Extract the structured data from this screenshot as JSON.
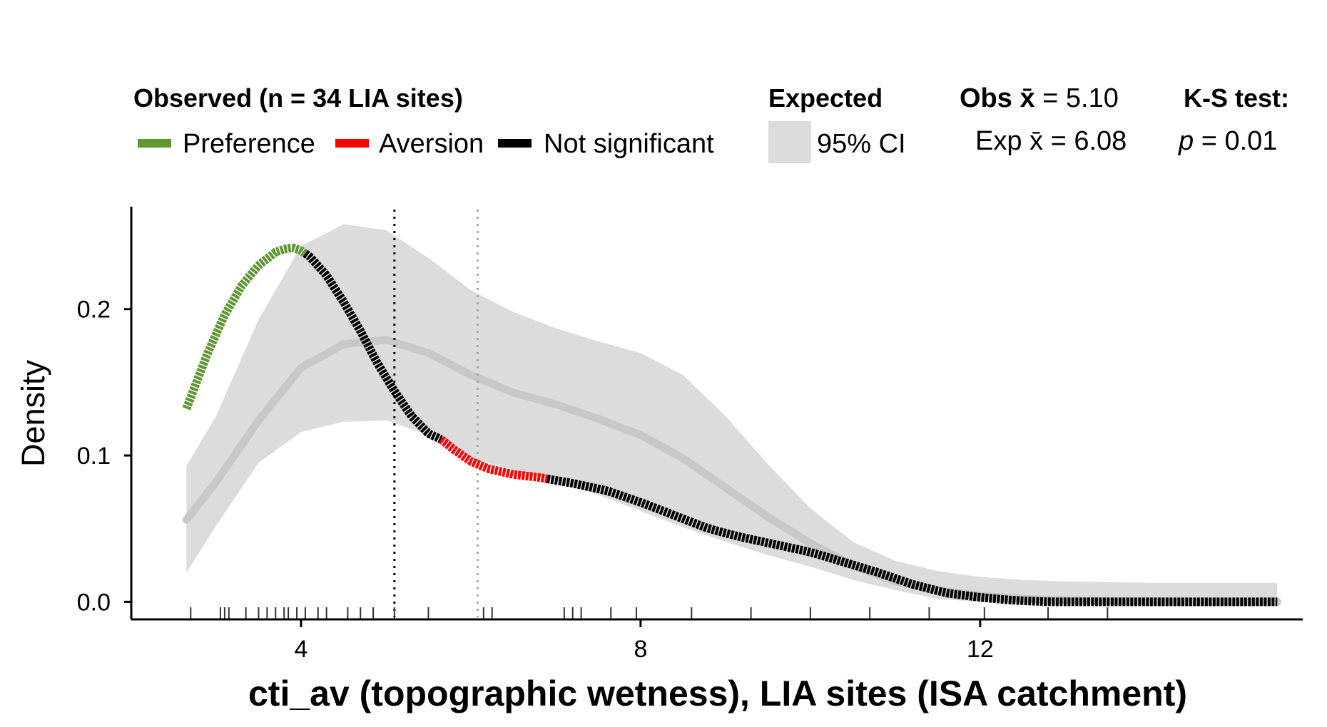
{
  "legend": {
    "observed_title": "Observed (n = 34 LIA sites)",
    "items": [
      {
        "label": "Preference",
        "color": "#5e9732"
      },
      {
        "label": "Aversion",
        "color": "#ff0000"
      },
      {
        "label": "Not significant",
        "color": "#000000"
      }
    ],
    "expected_title": "Expected",
    "ci_label": "95% CI",
    "ci_color": "#dcdcdc",
    "obs_mean_bold": "Obs x̄",
    "obs_mean_value": " = 5.10",
    "exp_mean": "Exp x̄ = 6.08",
    "ks_title": "K-S test:",
    "ks_p_symbol": "p",
    "ks_p_value": " = 0.01"
  },
  "chart_data": {
    "type": "line",
    "xlabel": "cti_av (topographic wetness), LIA sites (ISA catchment)",
    "ylabel": "Density",
    "xlim": [
      2.0,
      15.8
    ],
    "ylim": [
      -0.012,
      0.27
    ],
    "x_ticks": [
      4,
      8,
      12
    ],
    "x_tick_labels": [
      "4",
      "8",
      "12"
    ],
    "y_ticks": [
      0.0,
      0.1,
      0.2
    ],
    "y_tick_labels": [
      "0.0",
      "0.1",
      "0.2"
    ],
    "obs_mean": 5.1,
    "exp_mean": 6.08,
    "observed": {
      "name": "Observed",
      "x": [
        2.65,
        2.9,
        3.1,
        3.3,
        3.5,
        3.7,
        3.8,
        3.9,
        4.0,
        4.1,
        4.3,
        4.5,
        4.7,
        4.9,
        5.1,
        5.3,
        5.5,
        5.65,
        5.8,
        6.0,
        6.2,
        6.5,
        6.8,
        6.9,
        7.2,
        7.6,
        8.0,
        8.4,
        8.8,
        9.2,
        9.6,
        10.0,
        10.4,
        10.8,
        11.2,
        11.6,
        12.0,
        12.4,
        12.8,
        13.3,
        14.0,
        14.8,
        15.5
      ],
      "y": [
        0.132,
        0.17,
        0.196,
        0.216,
        0.23,
        0.239,
        0.241,
        0.242,
        0.24,
        0.236,
        0.223,
        0.205,
        0.185,
        0.163,
        0.144,
        0.127,
        0.115,
        0.111,
        0.104,
        0.096,
        0.091,
        0.087,
        0.085,
        0.084,
        0.081,
        0.076,
        0.068,
        0.059,
        0.05,
        0.044,
        0.039,
        0.034,
        0.027,
        0.02,
        0.012,
        0.006,
        0.003,
        0.001,
        0.0,
        0.0,
        0.0,
        0.0,
        0.0
      ],
      "segments": [
        {
          "status": "Preference",
          "x_range": [
            2.65,
            4.05
          ]
        },
        {
          "status": "Not significant",
          "x_range": [
            4.05,
            5.65
          ]
        },
        {
          "status": "Aversion",
          "x_range": [
            5.65,
            6.9
          ]
        },
        {
          "status": "Not significant",
          "x_range": [
            6.9,
            15.5
          ]
        }
      ]
    },
    "expected": {
      "name": "Expected",
      "x": [
        2.65,
        3.0,
        3.5,
        4.0,
        4.5,
        5.0,
        5.5,
        6.0,
        6.5,
        7.0,
        7.5,
        8.0,
        8.5,
        9.0,
        9.5,
        10.0,
        10.5,
        11.0,
        11.5,
        12.0,
        12.5,
        13.0,
        14.0,
        15.0,
        15.5
      ],
      "mean": [
        0.056,
        0.082,
        0.124,
        0.16,
        0.176,
        0.179,
        0.17,
        0.155,
        0.143,
        0.135,
        0.125,
        0.114,
        0.098,
        0.078,
        0.058,
        0.04,
        0.025,
        0.014,
        0.008,
        0.004,
        0.002,
        0.001,
        0.0,
        0.0,
        0.0
      ],
      "ci_lower": [
        0.02,
        0.052,
        0.095,
        0.116,
        0.123,
        0.124,
        0.114,
        0.098,
        0.09,
        0.083,
        0.073,
        0.062,
        0.051,
        0.041,
        0.032,
        0.024,
        0.015,
        0.008,
        0.002,
        0.0,
        0.0,
        0.0,
        0.0,
        0.0,
        0.0
      ],
      "ci_upper": [
        0.093,
        0.127,
        0.193,
        0.243,
        0.258,
        0.254,
        0.235,
        0.213,
        0.198,
        0.187,
        0.178,
        0.17,
        0.155,
        0.127,
        0.094,
        0.064,
        0.041,
        0.028,
        0.021,
        0.017,
        0.015,
        0.014,
        0.013,
        0.013,
        0.013
      ]
    },
    "rug": [
      2.7,
      3.05,
      3.1,
      3.15,
      3.35,
      3.5,
      3.6,
      3.7,
      3.8,
      3.85,
      3.95,
      4.05,
      4.2,
      4.3,
      4.55,
      4.7,
      4.85,
      5.1,
      5.5,
      6.15,
      6.25,
      7.1,
      7.2,
      7.3,
      7.65,
      7.95,
      8.6,
      9.3,
      10.0,
      10.7,
      11.4,
      12.05,
      12.8,
      13.5
    ]
  }
}
